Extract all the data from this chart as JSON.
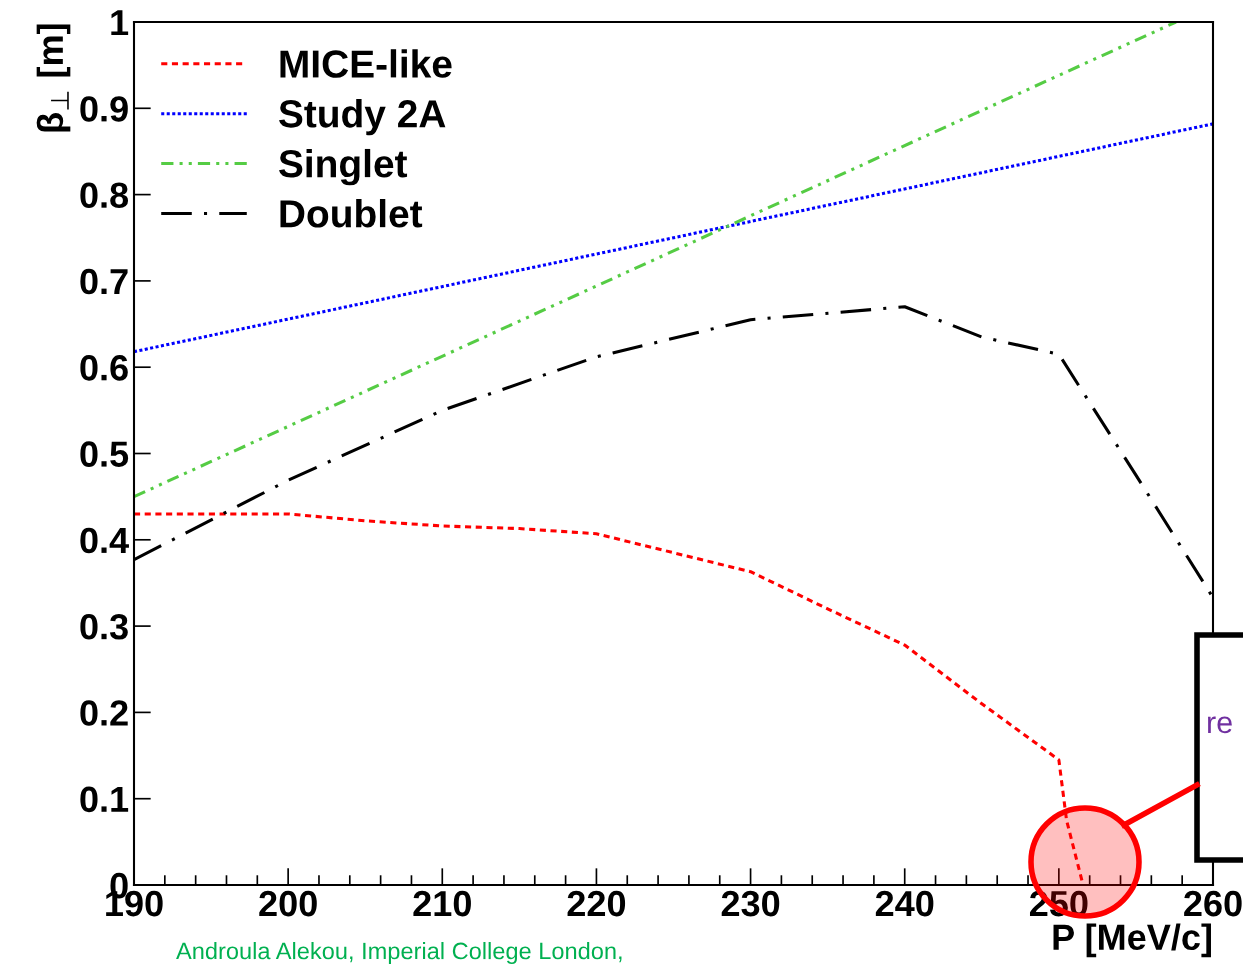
{
  "chart_data": {
    "type": "line",
    "xlabel": "P [MeV/c]",
    "ylabel": "β$_{⊥}$ [m]",
    "xlim": [
      190,
      260
    ],
    "xticks": [
      190,
      200,
      210,
      220,
      230,
      240,
      250,
      260
    ],
    "ylim": [
      0,
      1
    ],
    "yticks": [
      0,
      0.1,
      0.2,
      0.3,
      0.4,
      0.5,
      0.6,
      0.7,
      0.8,
      0.9,
      1
    ],
    "grid": false,
    "legend": "top left",
    "marker": "none",
    "series": [
      {
        "name": "MICE-like",
        "color": "#ff0000",
        "line_style": "dashed",
        "x": [
          190,
          195,
          200,
          205,
          210,
          215,
          220,
          225,
          230,
          235,
          240,
          245,
          250,
          250.5,
          251.5
        ],
        "values": [
          0.43,
          0.43,
          0.43,
          0.422,
          0.416,
          0.413,
          0.407,
          0.385,
          0.363,
          0.32,
          0.278,
          0.21,
          0.145,
          0.075,
          0.005
        ]
      },
      {
        "name": "Study 2A",
        "color": "#0000ff",
        "line_style": "dotted",
        "x": [
          190,
          260
        ],
        "values": [
          0.618,
          0.882
        ]
      },
      {
        "name": "Singlet",
        "color": "#55cc44",
        "line_style": "dashdotdot",
        "x": [
          190,
          257.6
        ],
        "values": [
          0.45,
          1.0
        ]
      },
      {
        "name": "Doublet",
        "color": "#000000",
        "line_style": "dashdot",
        "x": [
          190,
          200,
          210,
          220,
          230,
          240,
          245,
          250,
          255,
          260
        ],
        "values": [
          0.377,
          0.469,
          0.55,
          0.612,
          0.655,
          0.67,
          0.635,
          0.615,
          0.475,
          0.333
        ]
      }
    ],
    "annotations": [
      "Androula Alekou, Imperial College London,",
      "re"
    ]
  }
}
